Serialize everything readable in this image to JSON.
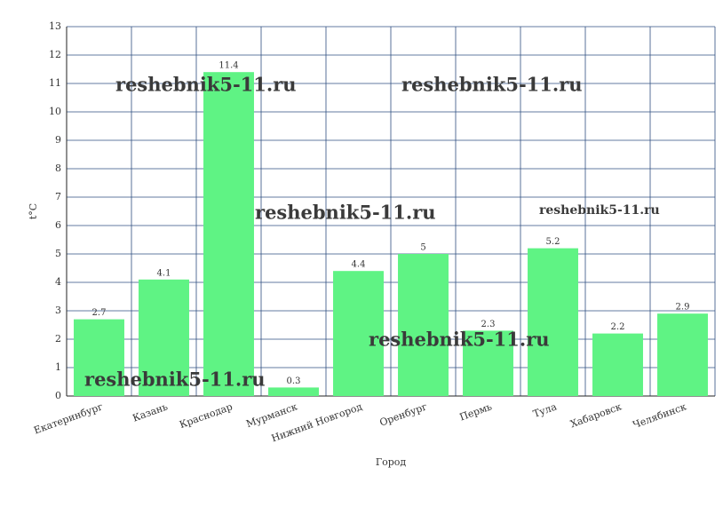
{
  "chart_data": {
    "type": "bar",
    "categories": [
      "Екатеринбург",
      "Казань",
      "Краснодар",
      "Мурманск",
      "Нижний Новгород",
      "Оренбург",
      "Пермь",
      "Тула",
      "Хабаровск",
      "Челябинск"
    ],
    "values": [
      2.7,
      4.1,
      11.4,
      0.3,
      4.4,
      5,
      2.3,
      5.2,
      2.2,
      2.9
    ],
    "color": "#5ff384",
    "ylim": [
      0,
      13
    ],
    "yticks": [
      0,
      1,
      2,
      3,
      4,
      5,
      6,
      7,
      8,
      9,
      10,
      11,
      12,
      13
    ],
    "grid": true,
    "y_label": "t°C",
    "x_label": "Город",
    "watermarks": [
      "reshebnik5-11.ru",
      "reshebnik5-11.ru",
      "reshebnik5-11.ru",
      "reshebnik5-11.ru",
      "reshebnik5-11.ru",
      "reshebnik5-11.ru"
    ]
  }
}
